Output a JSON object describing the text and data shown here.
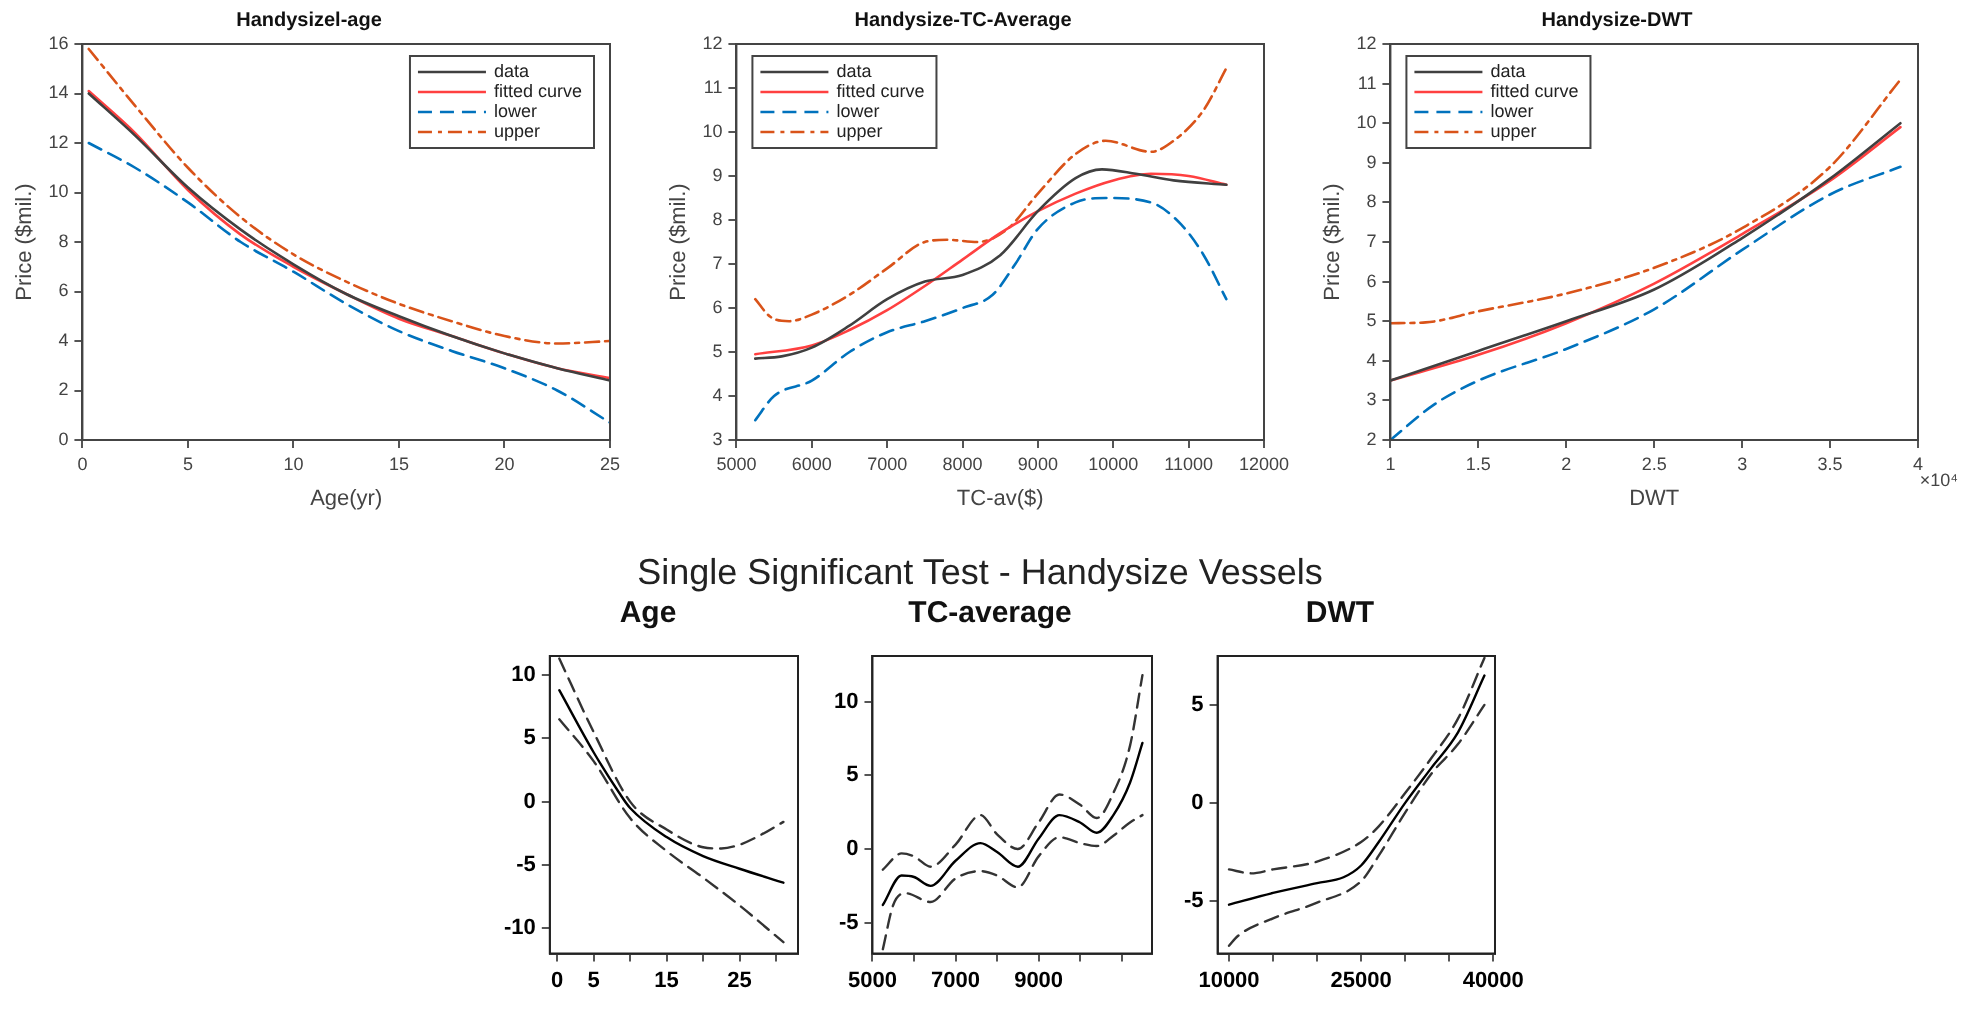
{
  "chart_data": [
    {
      "type": "line",
      "title": "Handysizel-age",
      "xlabel": "Age(yr)",
      "ylabel": "Price ($mil.)",
      "xlim": [
        0,
        25
      ],
      "xticks": [
        0,
        5,
        10,
        15,
        20,
        25
      ],
      "ylim": [
        0,
        16
      ],
      "yticks": [
        0,
        2,
        4,
        6,
        8,
        10,
        12,
        14,
        16
      ],
      "legend": "top right",
      "series": [
        {
          "name": "data",
          "color": "#404040",
          "line_style": "solid",
          "x": [
            0.3,
            2.5,
            5,
            7.5,
            10,
            12.5,
            15,
            17.5,
            20,
            22.5,
            25
          ],
          "values": [
            14.0,
            12.3,
            10.2,
            8.5,
            7.1,
            5.9,
            5.0,
            4.2,
            3.5,
            2.9,
            2.4
          ]
        },
        {
          "name": "fitted curve",
          "color": "#ff4040",
          "line_style": "solid",
          "x": [
            0.3,
            2.5,
            5,
            7.5,
            10,
            12.5,
            15,
            17.5,
            20,
            22.5,
            25
          ],
          "values": [
            14.1,
            12.4,
            10.1,
            8.3,
            7.0,
            5.9,
            4.9,
            4.2,
            3.5,
            2.9,
            2.5
          ]
        },
        {
          "name": "lower",
          "color": "#0072bd",
          "line_style": "dashed",
          "x": [
            0.3,
            2.5,
            5,
            7.5,
            10,
            12.5,
            15,
            17.5,
            20,
            22.5,
            25
          ],
          "values": [
            12.0,
            11.0,
            9.6,
            8.0,
            6.8,
            5.5,
            4.4,
            3.6,
            2.9,
            2.0,
            0.7
          ]
        },
        {
          "name": "upper",
          "color": "#d95319",
          "line_style": "dashdot",
          "x": [
            0.3,
            2.5,
            5,
            7.5,
            10,
            12.5,
            15,
            17.5,
            20,
            22.5,
            25
          ],
          "values": [
            15.8,
            13.5,
            11.0,
            9.0,
            7.5,
            6.4,
            5.5,
            4.8,
            4.2,
            3.9,
            4.0
          ]
        }
      ]
    },
    {
      "type": "line",
      "title": "Handysize-TC-Average",
      "xlabel": "TC-av($)",
      "ylabel": "Price ($mil.)",
      "xlim": [
        5000,
        12000
      ],
      "xticks": [
        5000,
        6000,
        7000,
        8000,
        9000,
        10000,
        11000,
        12000
      ],
      "ylim": [
        3,
        12
      ],
      "yticks": [
        3,
        4,
        5,
        6,
        7,
        8,
        9,
        10,
        11,
        12
      ],
      "legend": "top left",
      "series": [
        {
          "name": "data",
          "color": "#404040",
          "line_style": "solid",
          "x": [
            5250,
            5600,
            6000,
            6500,
            7000,
            7500,
            8000,
            8500,
            9000,
            9500,
            9850,
            10300,
            10800,
            11500
          ],
          "values": [
            4.85,
            4.9,
            5.1,
            5.6,
            6.2,
            6.6,
            6.75,
            7.2,
            8.2,
            8.95,
            9.15,
            9.05,
            8.9,
            8.8
          ]
        },
        {
          "name": "fitted curve",
          "color": "#ff4040",
          "line_style": "solid",
          "x": [
            5250,
            6000,
            6500,
            7000,
            7500,
            8000,
            8500,
            9000,
            9500,
            10000,
            10500,
            11000,
            11500
          ],
          "values": [
            4.95,
            5.15,
            5.5,
            5.95,
            6.5,
            7.1,
            7.7,
            8.2,
            8.6,
            8.9,
            9.05,
            9.0,
            8.8
          ]
        },
        {
          "name": "lower",
          "color": "#0072bd",
          "line_style": "dashed",
          "x": [
            5250,
            5500,
            6000,
            6500,
            7000,
            7500,
            8000,
            8400,
            8700,
            9000,
            9500,
            9900,
            10500,
            10900,
            11200,
            11500
          ],
          "values": [
            3.45,
            4.0,
            4.35,
            5.0,
            5.45,
            5.7,
            6.0,
            6.3,
            7.0,
            7.8,
            8.4,
            8.5,
            8.4,
            7.9,
            7.2,
            6.2
          ]
        },
        {
          "name": "upper",
          "color": "#d95319",
          "line_style": "dashdot",
          "x": [
            5250,
            5450,
            5700,
            6000,
            6500,
            7000,
            7500,
            7800,
            8200,
            8600,
            9000,
            9500,
            9900,
            10500,
            10800,
            11200,
            11500
          ],
          "values": [
            6.2,
            5.8,
            5.7,
            5.85,
            6.3,
            6.9,
            7.5,
            7.55,
            7.5,
            7.8,
            8.6,
            9.5,
            9.8,
            9.55,
            9.8,
            10.5,
            11.45
          ]
        }
      ]
    },
    {
      "type": "line",
      "title": "Handysize-DWT",
      "xlabel": "DWT",
      "ylabel": "Price ($mil.)",
      "annotations": [
        "×10⁴"
      ],
      "xlim": [
        1,
        4
      ],
      "xticks": [
        1,
        1.5,
        2,
        2.5,
        3,
        3.5,
        4
      ],
      "ylim": [
        2,
        12
      ],
      "yticks": [
        2,
        3,
        4,
        5,
        6,
        7,
        8,
        9,
        10,
        11,
        12
      ],
      "legend": "top left",
      "series": [
        {
          "name": "data",
          "color": "#404040",
          "line_style": "solid",
          "x": [
            1,
            1.5,
            2,
            2.5,
            3,
            3.5,
            3.9
          ],
          "values": [
            3.5,
            4.25,
            5.0,
            5.8,
            7.1,
            8.6,
            10.0
          ]
        },
        {
          "name": "fitted curve",
          "color": "#ff4040",
          "line_style": "solid",
          "x": [
            1,
            1.5,
            2,
            2.5,
            3,
            3.5,
            3.9
          ],
          "values": [
            3.5,
            4.15,
            4.95,
            5.95,
            7.2,
            8.55,
            9.9
          ]
        },
        {
          "name": "lower",
          "color": "#0072bd",
          "line_style": "dashed",
          "x": [
            1,
            1.25,
            1.5,
            2,
            2.5,
            3,
            3.5,
            3.9
          ],
          "values": [
            2.0,
            2.9,
            3.5,
            4.3,
            5.3,
            6.8,
            8.2,
            8.9
          ]
        },
        {
          "name": "upper",
          "color": "#d95319",
          "line_style": "dashdot",
          "x": [
            1,
            1.2,
            1.5,
            2,
            2.5,
            3,
            3.5,
            3.9
          ],
          "values": [
            4.95,
            4.97,
            5.25,
            5.7,
            6.35,
            7.35,
            8.9,
            11.1
          ]
        }
      ]
    },
    {
      "type": "other",
      "title": "Single Significant Test - Handysize Vessels"
    },
    {
      "type": "line",
      "title": "Age",
      "xlim": [
        -1,
        33
      ],
      "xticks": [
        0,
        5,
        {
          "value": 10,
          "label": null
        },
        15,
        {
          "value": 20,
          "label": null
        },
        25,
        {
          "value": 30,
          "label": null
        }
      ],
      "ylim": [
        -12,
        11.5
      ],
      "yticks": [
        -10,
        -5,
        0,
        5,
        10
      ],
      "series": [
        {
          "color": "#000000",
          "line_style": "solid",
          "x": [
            0.3,
            5,
            8.5,
            10,
            15,
            20,
            25,
            31
          ],
          "values": [
            8.8,
            3.9,
            0.7,
            -0.5,
            -2.8,
            -4.3,
            -5.3,
            -6.4
          ]
        },
        {
          "color": "#333333",
          "line_style": "dashed",
          "x": [
            0.3,
            5,
            10,
            15,
            20,
            22.5,
            25,
            28,
            31
          ],
          "values": [
            11.3,
            5.5,
            0,
            -2.2,
            -3.6,
            -3.7,
            -3.4,
            -2.6,
            -1.6
          ]
        },
        {
          "color": "#333333",
          "line_style": "dashed",
          "x": [
            0.3,
            5,
            10,
            15,
            20,
            25,
            31
          ],
          "values": [
            6.5,
            3.2,
            -1.3,
            -3.9,
            -6.0,
            -8.2,
            -11.1
          ]
        }
      ]
    },
    {
      "type": "line",
      "title": "TC-average",
      "xlim": [
        5000,
        11730
      ],
      "xticks": [
        5000,
        {
          "value": 6000,
          "label": null
        },
        7000,
        {
          "value": 8000,
          "label": null
        },
        9000,
        {
          "value": 10000,
          "label": null
        },
        {
          "value": 11000,
          "label": null
        }
      ],
      "ylim": [
        -7.1,
        13.1
      ],
      "yticks": [
        -5,
        0,
        5,
        10
      ],
      "series": [
        {
          "color": "#000000",
          "line_style": "solid",
          "x": [
            5250,
            5700,
            6000,
            6400,
            7000,
            7600,
            8000,
            8500,
            9000,
            9500,
            10000,
            10400,
            10800,
            11200,
            11500
          ],
          "values": [
            -3.8,
            -1.8,
            -1.9,
            -2.5,
            -0.8,
            0.4,
            -0.2,
            -1.2,
            0.7,
            2.3,
            1.8,
            1.1,
            2.3,
            4.5,
            7.2
          ]
        },
        {
          "color": "#333333",
          "line_style": "dashed",
          "x": [
            5250,
            5700,
            6000,
            6400,
            7000,
            7600,
            8000,
            8500,
            9000,
            9500,
            10000,
            10400,
            10800,
            11200,
            11500
          ],
          "values": [
            -1.4,
            -0.3,
            -0.5,
            -1.2,
            0.3,
            2.3,
            1.0,
            0,
            1.8,
            3.7,
            3.0,
            2.1,
            3.8,
            7,
            11.8
          ]
        },
        {
          "color": "#333333",
          "line_style": "dashed",
          "x": [
            5250,
            5500,
            5800,
            6400,
            7000,
            7600,
            8000,
            8500,
            9000,
            9500,
            10000,
            10400,
            10800,
            11200,
            11500
          ],
          "values": [
            -6.8,
            -3.8,
            -3.0,
            -3.6,
            -2.0,
            -1.5,
            -1.8,
            -2.6,
            -0.5,
            0.8,
            0.4,
            0.2,
            0.9,
            1.8,
            2.3
          ]
        }
      ]
    },
    {
      "type": "line",
      "title": "DWT",
      "xlim": [
        8700,
        40200
      ],
      "xticks": [
        10000,
        {
          "value": 15000,
          "label": null
        },
        {
          "value": 20000,
          "label": null
        },
        25000,
        {
          "value": 30000,
          "label": null
        },
        {
          "value": 35000,
          "label": null
        },
        40000
      ],
      "ylim": [
        -7.7,
        7.5
      ],
      "yticks": [
        -5,
        0,
        5
      ],
      "series": [
        {
          "color": "#000000",
          "line_style": "solid",
          "x": [
            10000,
            15000,
            20000,
            23000,
            25000,
            27000,
            30000,
            33000,
            36000,
            39000
          ],
          "values": [
            -5.2,
            -4.6,
            -4.1,
            -3.8,
            -3.2,
            -2.0,
            0,
            1.8,
            3.6,
            6.5
          ]
        },
        {
          "color": "#333333",
          "line_style": "dashed",
          "x": [
            10000,
            12500,
            15000,
            20000,
            25000,
            27000,
            30000,
            33000,
            36000,
            39000
          ],
          "values": [
            -3.4,
            -3.6,
            -3.4,
            -3.0,
            -2.0,
            -1.2,
            0.5,
            2.3,
            4.3,
            7.4
          ]
        },
        {
          "color": "#333333",
          "line_style": "dashed",
          "x": [
            10000,
            11000,
            15000,
            20000,
            25000,
            27000,
            30000,
            33000,
            36000,
            39000
          ],
          "values": [
            -7.3,
            -6.8,
            -5.9,
            -5.1,
            -4.0,
            -2.7,
            -0.5,
            1.5,
            3.0,
            5.0
          ]
        }
      ]
    }
  ]
}
